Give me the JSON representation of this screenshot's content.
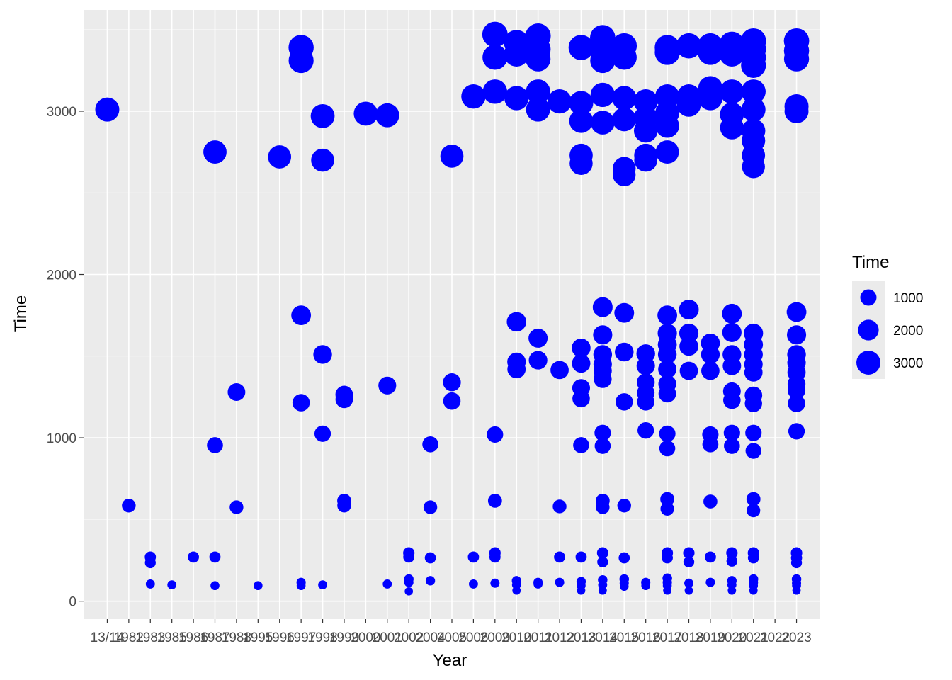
{
  "chart_data": {
    "type": "scatter",
    "title": "",
    "xlabel": "Year",
    "ylabel": "Time",
    "categories": [
      "13/14",
      "1982",
      "1983",
      "1985",
      "1986",
      "1987",
      "1988",
      "1995",
      "1996",
      "1997",
      "1998",
      "1999",
      "2000",
      "2001",
      "2002",
      "2004",
      "2005",
      "2006",
      "2009",
      "2010",
      "2011",
      "2012",
      "2013",
      "2014",
      "2015",
      "2016",
      "2017",
      "2018",
      "2019",
      "2020",
      "2021",
      "2022",
      "2023"
    ],
    "ylim": [
      -110,
      3620
    ],
    "yticks": [
      0,
      1000,
      2000,
      3000
    ],
    "grid": true,
    "point_color": "#0000ff",
    "panel_background": "#ebebeb",
    "legend": {
      "title": "Time",
      "position": "right",
      "entries": [
        {
          "label": "1000",
          "value": 1000
        },
        {
          "label": "2000",
          "value": 2000
        },
        {
          "label": "3000",
          "value": 3000
        }
      ]
    },
    "points": [
      {
        "x": "13/14",
        "y": 3010
      },
      {
        "x": "1982",
        "y": 585
      },
      {
        "x": "1983",
        "y": 270
      },
      {
        "x": "1983",
        "y": 235
      },
      {
        "x": "1983",
        "y": 105
      },
      {
        "x": "1985",
        "y": 100
      },
      {
        "x": "1986",
        "y": 270
      },
      {
        "x": "1987",
        "y": 2750
      },
      {
        "x": "1987",
        "y": 955
      },
      {
        "x": "1987",
        "y": 270
      },
      {
        "x": "1987",
        "y": 95
      },
      {
        "x": "1988",
        "y": 1280
      },
      {
        "x": "1988",
        "y": 575
      },
      {
        "x": "1995",
        "y": 95
      },
      {
        "x": "1996",
        "y": 2720
      },
      {
        "x": "1997",
        "y": 3390
      },
      {
        "x": "1997",
        "y": 3310
      },
      {
        "x": "1997",
        "y": 1750
      },
      {
        "x": "1997",
        "y": 1215
      },
      {
        "x": "1997",
        "y": 115
      },
      {
        "x": "1997",
        "y": 95
      },
      {
        "x": "1998",
        "y": 2970
      },
      {
        "x": "1998",
        "y": 2700
      },
      {
        "x": "1998",
        "y": 1510
      },
      {
        "x": "1998",
        "y": 1025
      },
      {
        "x": "1998",
        "y": 100
      },
      {
        "x": "1999",
        "y": 1265
      },
      {
        "x": "1999",
        "y": 1235
      },
      {
        "x": "1999",
        "y": 615
      },
      {
        "x": "1999",
        "y": 585
      },
      {
        "x": "2000",
        "y": 2985
      },
      {
        "x": "2001",
        "y": 2975
      },
      {
        "x": "2001",
        "y": 1320
      },
      {
        "x": "2001",
        "y": 105
      },
      {
        "x": "2002",
        "y": 295
      },
      {
        "x": "2002",
        "y": 270
      },
      {
        "x": "2002",
        "y": 135
      },
      {
        "x": "2002",
        "y": 115
      },
      {
        "x": "2002",
        "y": 60
      },
      {
        "x": "2004",
        "y": 960
      },
      {
        "x": "2004",
        "y": 575
      },
      {
        "x": "2004",
        "y": 265
      },
      {
        "x": "2004",
        "y": 125
      },
      {
        "x": "2005",
        "y": 2725
      },
      {
        "x": "2005",
        "y": 1340
      },
      {
        "x": "2005",
        "y": 1225
      },
      {
        "x": "2006",
        "y": 3090
      },
      {
        "x": "2006",
        "y": 270
      },
      {
        "x": "2006",
        "y": 105
      },
      {
        "x": "2009",
        "y": 3470
      },
      {
        "x": "2009",
        "y": 3330
      },
      {
        "x": "2009",
        "y": 3120
      },
      {
        "x": "2009",
        "y": 1020
      },
      {
        "x": "2009",
        "y": 615
      },
      {
        "x": "2009",
        "y": 295
      },
      {
        "x": "2009",
        "y": 270
      },
      {
        "x": "2009",
        "y": 110
      },
      {
        "x": "2010",
        "y": 3420
      },
      {
        "x": "2010",
        "y": 3350
      },
      {
        "x": "2010",
        "y": 3080
      },
      {
        "x": "2010",
        "y": 1710
      },
      {
        "x": "2010",
        "y": 1465
      },
      {
        "x": "2010",
        "y": 1420
      },
      {
        "x": "2010",
        "y": 125
      },
      {
        "x": "2010",
        "y": 100
      },
      {
        "x": "2010",
        "y": 65
      },
      {
        "x": "2011",
        "y": 3460
      },
      {
        "x": "2011",
        "y": 3380
      },
      {
        "x": "2011",
        "y": 3320
      },
      {
        "x": "2011",
        "y": 3120
      },
      {
        "x": "2011",
        "y": 3010
      },
      {
        "x": "2011",
        "y": 1610
      },
      {
        "x": "2011",
        "y": 1475
      },
      {
        "x": "2011",
        "y": 115
      },
      {
        "x": "2011",
        "y": 105
      },
      {
        "x": "2012",
        "y": 3060
      },
      {
        "x": "2012",
        "y": 1415
      },
      {
        "x": "2012",
        "y": 580
      },
      {
        "x": "2012",
        "y": 270
      },
      {
        "x": "2012",
        "y": 115
      },
      {
        "x": "2013",
        "y": 3390
      },
      {
        "x": "2013",
        "y": 3050
      },
      {
        "x": "2013",
        "y": 2940
      },
      {
        "x": "2013",
        "y": 2730
      },
      {
        "x": "2013",
        "y": 2680
      },
      {
        "x": "2013",
        "y": 1550
      },
      {
        "x": "2013",
        "y": 1455
      },
      {
        "x": "2013",
        "y": 1305
      },
      {
        "x": "2013",
        "y": 1240
      },
      {
        "x": "2013",
        "y": 955
      },
      {
        "x": "2013",
        "y": 270
      },
      {
        "x": "2013",
        "y": 120
      },
      {
        "x": "2013",
        "y": 95
      },
      {
        "x": "2013",
        "y": 65
      },
      {
        "x": "2014",
        "y": 3450
      },
      {
        "x": "2014",
        "y": 3380
      },
      {
        "x": "2014",
        "y": 3310
      },
      {
        "x": "2014",
        "y": 3100
      },
      {
        "x": "2014",
        "y": 2930
      },
      {
        "x": "2014",
        "y": 1800
      },
      {
        "x": "2014",
        "y": 1630
      },
      {
        "x": "2014",
        "y": 1510
      },
      {
        "x": "2014",
        "y": 1450
      },
      {
        "x": "2014",
        "y": 1410
      },
      {
        "x": "2014",
        "y": 1360
      },
      {
        "x": "2014",
        "y": 1030
      },
      {
        "x": "2014",
        "y": 950
      },
      {
        "x": "2014",
        "y": 615
      },
      {
        "x": "2014",
        "y": 575
      },
      {
        "x": "2014",
        "y": 295
      },
      {
        "x": "2014",
        "y": 240
      },
      {
        "x": "2014",
        "y": 130
      },
      {
        "x": "2014",
        "y": 100
      },
      {
        "x": "2014",
        "y": 65
      },
      {
        "x": "2015",
        "y": 3400
      },
      {
        "x": "2015",
        "y": 3330
      },
      {
        "x": "2015",
        "y": 3080
      },
      {
        "x": "2015",
        "y": 2950
      },
      {
        "x": "2015",
        "y": 2650
      },
      {
        "x": "2015",
        "y": 2610
      },
      {
        "x": "2015",
        "y": 1765
      },
      {
        "x": "2015",
        "y": 1525
      },
      {
        "x": "2015",
        "y": 1220
      },
      {
        "x": "2015",
        "y": 585
      },
      {
        "x": "2015",
        "y": 265
      },
      {
        "x": "2015",
        "y": 135
      },
      {
        "x": "2015",
        "y": 110
      },
      {
        "x": "2015",
        "y": 90
      },
      {
        "x": "2016",
        "y": 3060
      },
      {
        "x": "2016",
        "y": 2960
      },
      {
        "x": "2016",
        "y": 2880
      },
      {
        "x": "2016",
        "y": 2730
      },
      {
        "x": "2016",
        "y": 2700
      },
      {
        "x": "2016",
        "y": 1515
      },
      {
        "x": "2016",
        "y": 1440
      },
      {
        "x": "2016",
        "y": 1340
      },
      {
        "x": "2016",
        "y": 1275
      },
      {
        "x": "2016",
        "y": 1220
      },
      {
        "x": "2016",
        "y": 1045
      },
      {
        "x": "2016",
        "y": 115
      },
      {
        "x": "2016",
        "y": 95
      },
      {
        "x": "2017",
        "y": 3390
      },
      {
        "x": "2017",
        "y": 3360
      },
      {
        "x": "2017",
        "y": 3090
      },
      {
        "x": "2017",
        "y": 2990
      },
      {
        "x": "2017",
        "y": 2910
      },
      {
        "x": "2017",
        "y": 2750
      },
      {
        "x": "2017",
        "y": 1750
      },
      {
        "x": "2017",
        "y": 1640
      },
      {
        "x": "2017",
        "y": 1570
      },
      {
        "x": "2017",
        "y": 1510
      },
      {
        "x": "2017",
        "y": 1420
      },
      {
        "x": "2017",
        "y": 1330
      },
      {
        "x": "2017",
        "y": 1270
      },
      {
        "x": "2017",
        "y": 1025
      },
      {
        "x": "2017",
        "y": 935
      },
      {
        "x": "2017",
        "y": 625
      },
      {
        "x": "2017",
        "y": 565
      },
      {
        "x": "2017",
        "y": 295
      },
      {
        "x": "2017",
        "y": 265
      },
      {
        "x": "2017",
        "y": 140
      },
      {
        "x": "2017",
        "y": 115
      },
      {
        "x": "2017",
        "y": 95
      },
      {
        "x": "2017",
        "y": 65
      },
      {
        "x": "2018",
        "y": 3400
      },
      {
        "x": "2018",
        "y": 3090
      },
      {
        "x": "2018",
        "y": 3040
      },
      {
        "x": "2018",
        "y": 1785
      },
      {
        "x": "2018",
        "y": 1640
      },
      {
        "x": "2018",
        "y": 1560
      },
      {
        "x": "2018",
        "y": 1410
      },
      {
        "x": "2018",
        "y": 295
      },
      {
        "x": "2018",
        "y": 240
      },
      {
        "x": "2018",
        "y": 110
      },
      {
        "x": "2018",
        "y": 65
      },
      {
        "x": "2019",
        "y": 3400
      },
      {
        "x": "2019",
        "y": 3360
      },
      {
        "x": "2019",
        "y": 3140
      },
      {
        "x": "2019",
        "y": 3080
      },
      {
        "x": "2019",
        "y": 1580
      },
      {
        "x": "2019",
        "y": 1510
      },
      {
        "x": "2019",
        "y": 1410
      },
      {
        "x": "2019",
        "y": 1020
      },
      {
        "x": "2019",
        "y": 960
      },
      {
        "x": "2019",
        "y": 610
      },
      {
        "x": "2019",
        "y": 270
      },
      {
        "x": "2019",
        "y": 115
      },
      {
        "x": "2020",
        "y": 3410
      },
      {
        "x": "2020",
        "y": 3350
      },
      {
        "x": "2020",
        "y": 3120
      },
      {
        "x": "2020",
        "y": 2980
      },
      {
        "x": "2020",
        "y": 2900
      },
      {
        "x": "2020",
        "y": 1760
      },
      {
        "x": "2020",
        "y": 1645
      },
      {
        "x": "2020",
        "y": 1510
      },
      {
        "x": "2020",
        "y": 1440
      },
      {
        "x": "2020",
        "y": 1285
      },
      {
        "x": "2020",
        "y": 1230
      },
      {
        "x": "2020",
        "y": 1030
      },
      {
        "x": "2020",
        "y": 950
      },
      {
        "x": "2020",
        "y": 295
      },
      {
        "x": "2020",
        "y": 245
      },
      {
        "x": "2020",
        "y": 125
      },
      {
        "x": "2020",
        "y": 100
      },
      {
        "x": "2020",
        "y": 65
      },
      {
        "x": "2021",
        "y": 3430
      },
      {
        "x": "2021",
        "y": 3380
      },
      {
        "x": "2021",
        "y": 3330
      },
      {
        "x": "2021",
        "y": 3280
      },
      {
        "x": "2021",
        "y": 3120
      },
      {
        "x": "2021",
        "y": 3010
      },
      {
        "x": "2021",
        "y": 2880
      },
      {
        "x": "2021",
        "y": 2820
      },
      {
        "x": "2021",
        "y": 2730
      },
      {
        "x": "2021",
        "y": 2660
      },
      {
        "x": "2021",
        "y": 1640
      },
      {
        "x": "2021",
        "y": 1570
      },
      {
        "x": "2021",
        "y": 1510
      },
      {
        "x": "2021",
        "y": 1450
      },
      {
        "x": "2021",
        "y": 1400
      },
      {
        "x": "2021",
        "y": 1260
      },
      {
        "x": "2021",
        "y": 1210
      },
      {
        "x": "2021",
        "y": 1030
      },
      {
        "x": "2021",
        "y": 920
      },
      {
        "x": "2021",
        "y": 625
      },
      {
        "x": "2021",
        "y": 555
      },
      {
        "x": "2021",
        "y": 295
      },
      {
        "x": "2021",
        "y": 265
      },
      {
        "x": "2021",
        "y": 135
      },
      {
        "x": "2021",
        "y": 115
      },
      {
        "x": "2021",
        "y": 95
      },
      {
        "x": "2021",
        "y": 65
      },
      {
        "x": "2023",
        "y": 3430
      },
      {
        "x": "2023",
        "y": 3370
      },
      {
        "x": "2023",
        "y": 3320
      },
      {
        "x": "2023",
        "y": 3030
      },
      {
        "x": "2023",
        "y": 3000
      },
      {
        "x": "2023",
        "y": 1770
      },
      {
        "x": "2023",
        "y": 1630
      },
      {
        "x": "2023",
        "y": 1510
      },
      {
        "x": "2023",
        "y": 1460
      },
      {
        "x": "2023",
        "y": 1400
      },
      {
        "x": "2023",
        "y": 1330
      },
      {
        "x": "2023",
        "y": 1290
      },
      {
        "x": "2023",
        "y": 1210
      },
      {
        "x": "2023",
        "y": 1040
      },
      {
        "x": "2023",
        "y": 295
      },
      {
        "x": "2023",
        "y": 265
      },
      {
        "x": "2023",
        "y": 235
      },
      {
        "x": "2023",
        "y": 135
      },
      {
        "x": "2023",
        "y": 110
      },
      {
        "x": "2023",
        "y": 95
      },
      {
        "x": "2023",
        "y": 65
      }
    ]
  }
}
